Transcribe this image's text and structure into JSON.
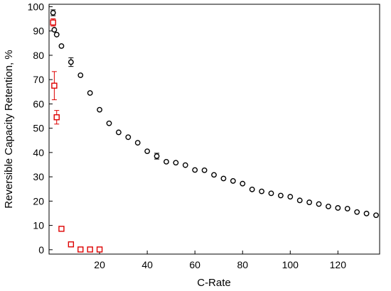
{
  "chart_data": {
    "type": "scatter",
    "xlabel": "C-Rate",
    "ylabel": "Reversible Capacity Retention, %",
    "xlim": [
      -1.2,
      137.5
    ],
    "ylim": [
      -1.8,
      101
    ],
    "xticks": [
      20,
      40,
      60,
      80,
      100,
      120
    ],
    "yticks": [
      0,
      10,
      20,
      30,
      40,
      50,
      60,
      70,
      80,
      90,
      100
    ],
    "grid": false,
    "legend": "none",
    "series": [
      {
        "marker": "circle",
        "color": "#000000",
        "points": [
          {
            "x": 0.5,
            "y": 97.5,
            "err": 1.2
          },
          {
            "x": 1,
            "y": 90.5,
            "err": 0.8
          },
          {
            "x": 2,
            "y": 88.5,
            "err": 0.8
          },
          {
            "x": 4,
            "y": 83.8,
            "err": 0.6
          },
          {
            "x": 8,
            "y": 77.2,
            "err": 1.8
          },
          {
            "x": 12,
            "y": 71.8,
            "err": 0.7
          },
          {
            "x": 16,
            "y": 64.5,
            "err": 0.7
          },
          {
            "x": 20,
            "y": 57.6,
            "err": 0.8
          },
          {
            "x": 24,
            "y": 52.0,
            "err": 0.6
          },
          {
            "x": 28,
            "y": 48.3,
            "err": 0.6
          },
          {
            "x": 32,
            "y": 46.3,
            "err": 0.6
          },
          {
            "x": 36,
            "y": 44.0,
            "err": 0.6
          },
          {
            "x": 40,
            "y": 40.5,
            "err": 0.8
          },
          {
            "x": 44,
            "y": 38.5,
            "err": 1.2
          },
          {
            "x": 48,
            "y": 36.2,
            "err": 0.6
          },
          {
            "x": 52,
            "y": 35.8,
            "err": 0.5
          },
          {
            "x": 56,
            "y": 34.8,
            "err": 0.5
          },
          {
            "x": 60,
            "y": 32.8,
            "err": 0.5
          },
          {
            "x": 64,
            "y": 32.7,
            "err": 0.5
          },
          {
            "x": 68,
            "y": 30.8,
            "err": 0.5
          },
          {
            "x": 72,
            "y": 29.3,
            "err": 0.5
          },
          {
            "x": 76,
            "y": 28.3,
            "err": 0.5
          },
          {
            "x": 80,
            "y": 27.2,
            "err": 0.5
          },
          {
            "x": 84,
            "y": 24.8,
            "err": 0.5
          },
          {
            "x": 88,
            "y": 24.0,
            "err": 0.5
          },
          {
            "x": 92,
            "y": 23.2,
            "err": 0.5
          },
          {
            "x": 96,
            "y": 22.3,
            "err": 0.5
          },
          {
            "x": 100,
            "y": 21.8,
            "err": 0.5
          },
          {
            "x": 104,
            "y": 20.3,
            "err": 0.5
          },
          {
            "x": 108,
            "y": 19.5,
            "err": 0.5
          },
          {
            "x": 112,
            "y": 18.8,
            "err": 0.5
          },
          {
            "x": 116,
            "y": 17.8,
            "err": 0.5
          },
          {
            "x": 120,
            "y": 17.2,
            "err": 0.5
          },
          {
            "x": 124,
            "y": 16.9,
            "err": 0.5
          },
          {
            "x": 128,
            "y": 15.5,
            "err": 0.5
          },
          {
            "x": 132,
            "y": 14.9,
            "err": 0.5
          },
          {
            "x": 136,
            "y": 14.2,
            "err": 0.5
          }
        ]
      },
      {
        "marker": "square",
        "color": "#dd0000",
        "points": [
          {
            "x": 0.5,
            "y": 93.5,
            "err": 1.5
          },
          {
            "x": 1,
            "y": 67.5,
            "err": 5.8
          },
          {
            "x": 2,
            "y": 54.5,
            "err": 2.8
          },
          {
            "x": 4,
            "y": 8.6,
            "err": 0.4
          },
          {
            "x": 8,
            "y": 2.2,
            "err": 0.3
          },
          {
            "x": 12,
            "y": 0.1,
            "err": 0.2
          },
          {
            "x": 16,
            "y": 0.1,
            "err": 0.2
          },
          {
            "x": 20,
            "y": 0.1,
            "err": 0.2
          }
        ]
      }
    ]
  }
}
